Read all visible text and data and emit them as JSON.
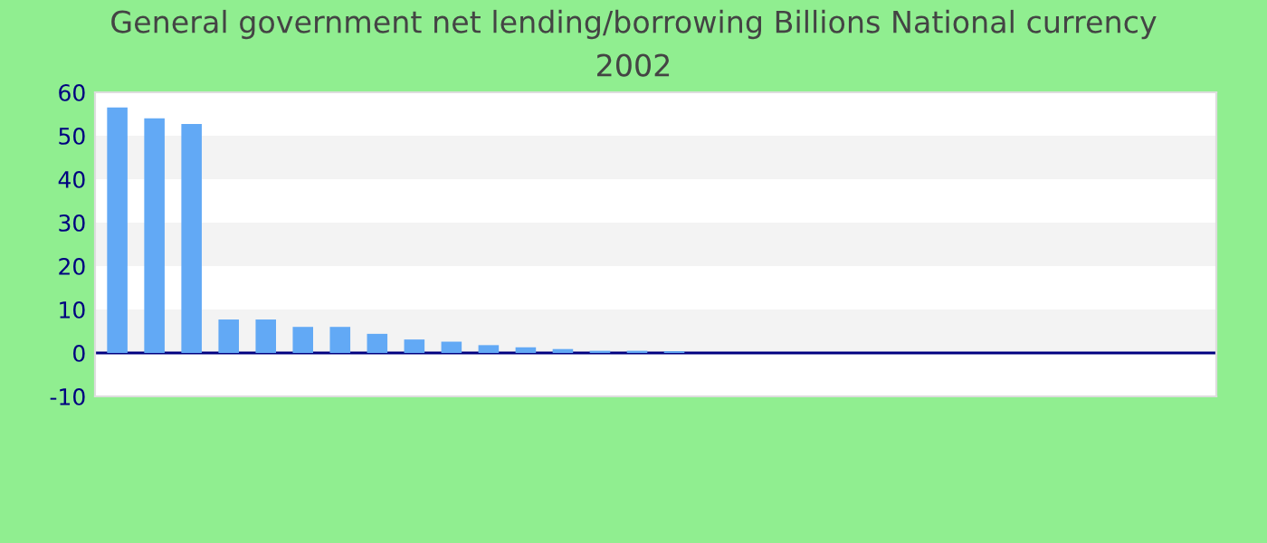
{
  "chart_data": {
    "type": "bar",
    "title": "General government net lending/borrowing Billions National currency",
    "subtitle": "2002",
    "categories": [
      null,
      null,
      null,
      null,
      null,
      null,
      null,
      null,
      null,
      null,
      null,
      null,
      null,
      null,
      null,
      null,
      null,
      null,
      null,
      null,
      null,
      null,
      null,
      null,
      null,
      null,
      null,
      null,
      null,
      null
    ],
    "values": [
      56.5,
      54,
      52.7,
      7.7,
      7.7,
      6,
      6,
      4.4,
      3.1,
      2.6,
      1.8,
      1.3,
      0.9,
      0.5,
      0.5,
      0.4,
      0,
      0,
      0,
      0,
      0,
      0,
      0,
      0,
      0,
      0,
      0,
      0,
      0,
      0
    ],
    "color": "#62a9f5",
    "ylim": [
      -10,
      60
    ],
    "yticks": [
      -10,
      0,
      10,
      20,
      30,
      40,
      50,
      60
    ],
    "bands": [
      {
        "axis": "y",
        "from": 0,
        "to": 10,
        "color": "#f3f3f3"
      },
      {
        "axis": "y",
        "from": 20,
        "to": 30,
        "color": "#f3f3f3"
      },
      {
        "axis": "y",
        "from": 40,
        "to": 50,
        "color": "#f3f3f3"
      }
    ],
    "ref_lines": [
      {
        "axis": "y",
        "value": 0,
        "color": "#000080"
      }
    ]
  }
}
